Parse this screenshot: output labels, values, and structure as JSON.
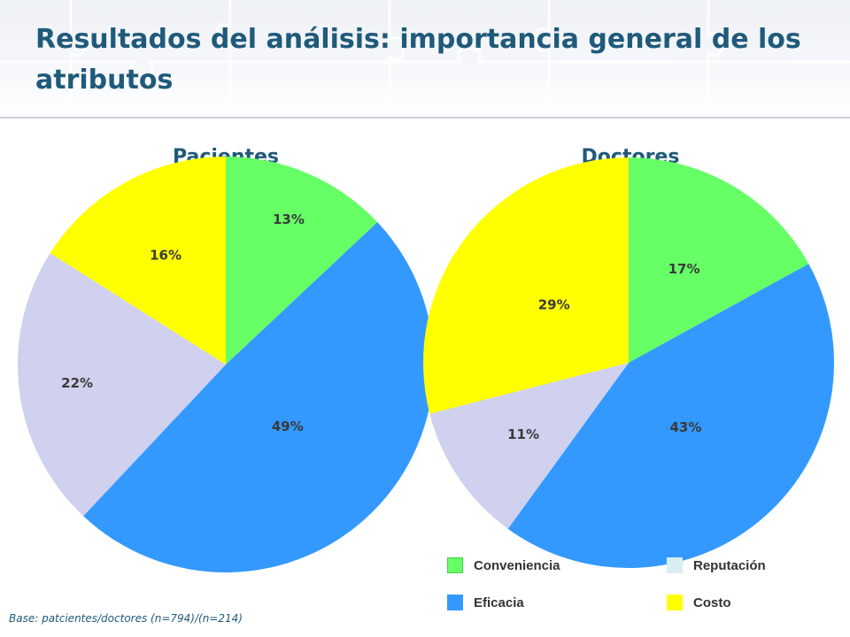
{
  "title": "Resultados del análisis: importancia general de los atributos",
  "colors": {
    "title": "#1f5a7a",
    "Conveniencia": "#66ff66",
    "Eficacia": "#3399ff",
    "Reputación": "#d0d0ef",
    "Costo": "#ffff00"
  },
  "legend": {
    "conveniencia": "Conveniencia",
    "reputacion": "Reputación",
    "eficacia": "Eficacia",
    "costo": "Costo"
  },
  "base_note": "Base: patcientes/doctores (n=794)/(n=214)",
  "chart_data": [
    {
      "type": "pie",
      "title": "Pacientes",
      "categories": [
        "Conveniencia",
        "Eficacia",
        "Reputación",
        "Costo"
      ],
      "values": [
        13,
        49,
        22,
        16
      ],
      "labels": [
        "13%",
        "49%",
        "22%",
        "16%"
      ]
    },
    {
      "type": "pie",
      "title": "Doctores",
      "categories": [
        "Conveniencia",
        "Eficacia",
        "Reputación",
        "Costo"
      ],
      "values": [
        17,
        43,
        11,
        29
      ],
      "labels": [
        "17%",
        "43%",
        "11%",
        "29%"
      ]
    }
  ]
}
